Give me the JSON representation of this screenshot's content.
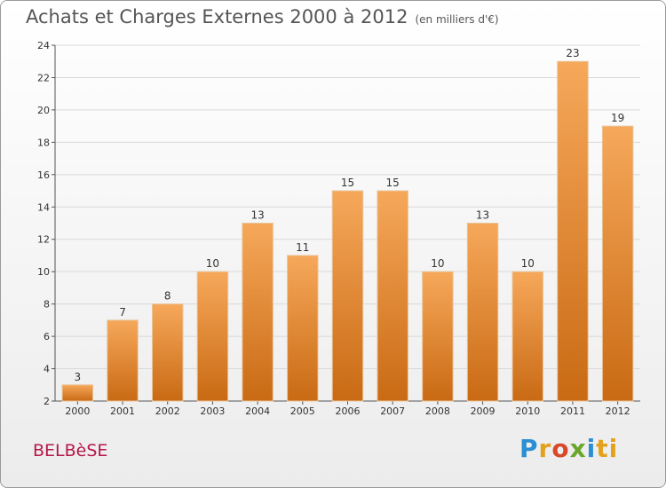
{
  "title": "Achats et Charges Externes 2000 à 2012",
  "subtitle": "(en milliers d'€)",
  "place": "BELBèSE",
  "logo": {
    "p1": "P",
    "p2": "r",
    "p3": "o",
    "p4": "x",
    "p5": "i",
    "p6": "ti"
  },
  "colors": {
    "bar_top": "#f6a85a",
    "bar_bottom": "#c96a14",
    "grid": "#d9d9d9",
    "axis": "#555555"
  },
  "chart_data": {
    "type": "bar",
    "title": "Achats et Charges Externes 2000 à 2012",
    "xlabel": "",
    "ylabel": "",
    "categories": [
      "2000",
      "2001",
      "2002",
      "2003",
      "2004",
      "2005",
      "2006",
      "2007",
      "2008",
      "2009",
      "2010",
      "2011",
      "2012"
    ],
    "values": [
      3,
      7,
      8,
      10,
      13,
      11,
      15,
      15,
      10,
      13,
      10,
      23,
      19
    ],
    "value_labels": [
      "3",
      "7",
      "8",
      "10",
      "13",
      "11",
      "15",
      "15",
      "10",
      "13",
      "10",
      "23",
      "19"
    ],
    "ylim": [
      2,
      24
    ],
    "yticks": [
      2,
      4,
      6,
      8,
      10,
      12,
      14,
      16,
      18,
      20,
      22,
      24
    ],
    "ytick_labels": [
      "2",
      "4",
      "6",
      "8",
      "10",
      "12",
      "14",
      "16",
      "18",
      "20",
      "22",
      "24"
    ],
    "grid": true,
    "legend": "none"
  }
}
